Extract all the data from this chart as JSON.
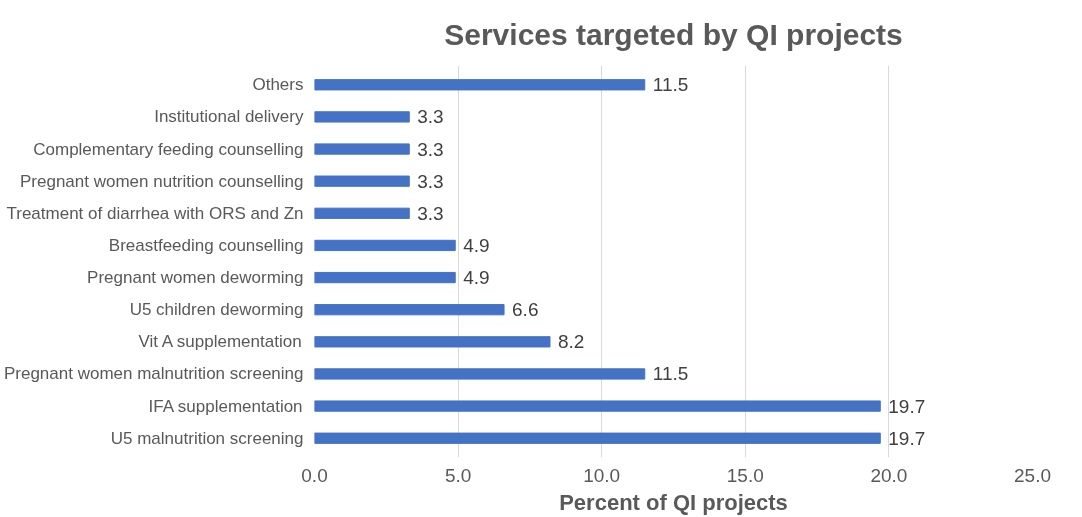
{
  "chart_data": {
    "type": "bar",
    "orientation": "horizontal",
    "title": "Services targeted by QI projects",
    "xlabel": "Percent of QI projects",
    "categories": [
      "Others",
      "Institutional delivery",
      "Complementary feeding counselling",
      "Pregnant women nutrition counselling",
      "Treatment of diarrhea with ORS and Zn",
      "Breastfeeding counselling",
      "Pregnant women deworming",
      "U5 children deworming",
      "Vit A supplementation",
      "Pregnant women malnutrition screening",
      "IFA supplementation",
      "U5 malnutrition screening"
    ],
    "values": [
      11.5,
      3.3,
      3.3,
      3.3,
      3.3,
      4.9,
      4.9,
      6.6,
      8.2,
      11.5,
      19.7,
      19.7
    ],
    "color": "#4472c4",
    "data_labels": true,
    "grid": "x",
    "xlim": [
      0,
      25
    ],
    "xticks": [
      {
        "value": 0,
        "label": "0.0"
      },
      {
        "value": 5,
        "label": "5.0"
      },
      {
        "value": 10,
        "label": "10.0"
      },
      {
        "value": 15,
        "label": "15.0"
      },
      {
        "value": 20,
        "label": "20.0"
      },
      {
        "value": 25,
        "label": "25.0"
      }
    ]
  }
}
